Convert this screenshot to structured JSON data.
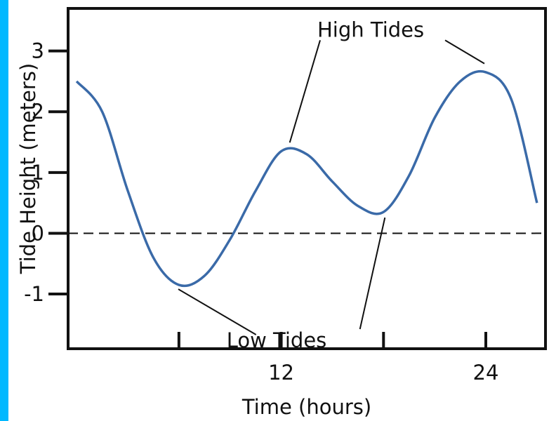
{
  "colors": {
    "accent_strip": "#00b8ff",
    "curve": "#3a6aa8",
    "axis": "#111111"
  },
  "chart_data": {
    "type": "line",
    "title": "",
    "xlabel": "Time (hours)",
    "ylabel": "Tide Height (meters)",
    "xlim": [
      -0.5,
      27.5
    ],
    "ylim": [
      -1.9,
      3.7
    ],
    "x_ticks": [
      6,
      12,
      18,
      24
    ],
    "x_tick_labels": [
      "",
      "12",
      "",
      "24"
    ],
    "y_ticks": [
      -1,
      0,
      1,
      2,
      3
    ],
    "y_tick_labels": [
      "-1",
      "0",
      "1",
      "2",
      "3"
    ],
    "zero_line": "dashed",
    "grid": false,
    "legend": "none",
    "series": [
      {
        "x": [
          0,
          1.5,
          3,
          4.5,
          6,
          7.5,
          9,
          10.5,
          12,
          13.5,
          15,
          16.5,
          18,
          19.5,
          21,
          22.5,
          24,
          25.5,
          27
        ],
        "y": [
          2.5,
          2.0,
          0.7,
          -0.4,
          -0.85,
          -0.7,
          -0.1,
          0.7,
          1.35,
          1.3,
          0.85,
          0.45,
          0.35,
          0.95,
          1.9,
          2.5,
          2.65,
          2.2,
          0.5
        ]
      }
    ],
    "annotations": [
      {
        "text": "High Tides",
        "points": [
          [
            12.5,
            1.4
          ],
          [
            24,
            2.7
          ]
        ],
        "anchor": [
          14.2,
          3.35
        ]
      },
      {
        "text": "Low Tides",
        "points": [
          [
            5.8,
            -0.85
          ],
          [
            18,
            0.35
          ]
        ],
        "anchor": [
          12.5,
          -1.3
        ]
      }
    ]
  }
}
